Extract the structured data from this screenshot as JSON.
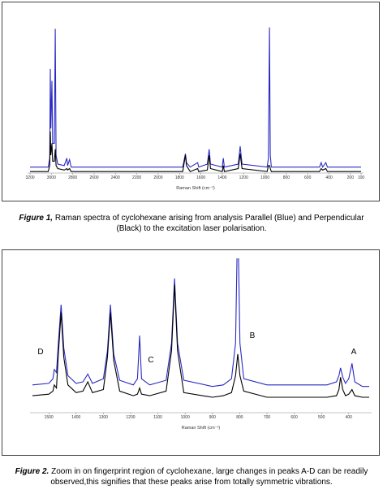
{
  "chart_data": [
    {
      "type": "line",
      "x_label": "Raman Shift (cm⁻¹)",
      "xlim": [
        3200,
        100
      ],
      "ylim": [
        0,
        100
      ],
      "xticks": [
        3200,
        3000,
        2800,
        2600,
        2400,
        2200,
        2000,
        1800,
        1600,
        1400,
        1200,
        1000,
        800,
        600,
        400,
        200,
        100
      ],
      "x": [
        3200,
        3030,
        3015,
        3010,
        3005,
        2995,
        2988,
        2972,
        2964,
        2956,
        2940,
        2880,
        2855,
        2848,
        2830,
        2815,
        1770,
        1745,
        1735,
        1700,
        1630,
        1620,
        1540,
        1522,
        1510,
        1400,
        1390,
        1380,
        1250,
        1232,
        1215,
        980,
        968,
        958,
        950,
        940,
        490,
        474,
        460,
        430,
        415,
        100
      ],
      "series": [
        {
          "color": "#2a2ac4",
          "values": [
            4,
            4,
            10,
            70,
            30,
            62,
            20,
            20,
            97,
            12,
            6,
            5,
            10,
            5,
            9,
            4,
            4,
            13,
            7,
            4,
            7,
            4,
            6,
            16,
            6,
            4,
            10,
            4,
            6,
            18,
            6,
            4,
            10,
            98,
            12,
            4,
            4,
            7,
            4,
            7,
            4,
            4
          ]
        },
        {
          "color": "#000000",
          "values": [
            1,
            1,
            5,
            28,
            12,
            20,
            8,
            8,
            16,
            5,
            3,
            2,
            3,
            2,
            3,
            1,
            1,
            12,
            5,
            1,
            3,
            1,
            2,
            12,
            3,
            1,
            5,
            1,
            3,
            13,
            3,
            1,
            5,
            5,
            3,
            1,
            1,
            3,
            2,
            3,
            1,
            1
          ]
        }
      ],
      "caption_label": "Figure 1,",
      "caption": "Raman spectra of cyclohexane arising from analysis Parallel (Blue) and Perpendicular (Black) to the excitation laser polarisation."
    },
    {
      "type": "line",
      "x_label": "Raman Shift (cm⁻¹)",
      "xlim": [
        1560,
        325
      ],
      "ylim": [
        0,
        100
      ],
      "xticks": [
        1500,
        1400,
        1300,
        1200,
        1100,
        1000,
        900,
        800,
        700,
        600,
        500,
        400
      ],
      "x": [
        1560,
        1500,
        1485,
        1480,
        1472,
        1465,
        1455,
        1445,
        1430,
        1400,
        1375,
        1357,
        1340,
        1300,
        1285,
        1274,
        1262,
        1240,
        1190,
        1175,
        1167,
        1160,
        1130,
        1070,
        1050,
        1039,
        1028,
        1005,
        900,
        860,
        830,
        815,
        807,
        799,
        785,
        700,
        600,
        480,
        445,
        436,
        430,
        422,
        412,
        400,
        388,
        378,
        350,
        325
      ],
      "series": [
        {
          "color": "#2a2ac4",
          "values": [
            18,
            19,
            22,
            28,
            26,
            45,
            70,
            42,
            24,
            19,
            20,
            25,
            19,
            22,
            40,
            70,
            38,
            21,
            18,
            22,
            50,
            22,
            18,
            21,
            45,
            87,
            45,
            21,
            17,
            18,
            22,
            45,
            130,
            45,
            22,
            18,
            18,
            18,
            20,
            24,
            29,
            23,
            19,
            22,
            32,
            20,
            17,
            17
          ]
        },
        {
          "color": "#000000",
          "values": [
            11,
            12,
            14,
            18,
            16,
            38,
            65,
            36,
            18,
            13,
            14,
            20,
            13,
            15,
            36,
            65,
            34,
            14,
            11,
            12,
            16,
            12,
            11,
            14,
            40,
            83,
            40,
            13,
            10,
            11,
            13,
            24,
            38,
            24,
            14,
            10,
            10,
            10,
            11,
            15,
            23,
            15,
            11,
            12,
            15,
            11,
            10,
            10
          ]
        }
      ],
      "annotations": [
        "D",
        "C",
        "B",
        "A"
      ],
      "caption_label": "Figure 2.",
      "caption": "Zoom in on fingerprint region of cyclohexane, large changes in peaks A-D can be readily observed,this signifies that these peaks arise from totally symmetric vibrations."
    }
  ]
}
